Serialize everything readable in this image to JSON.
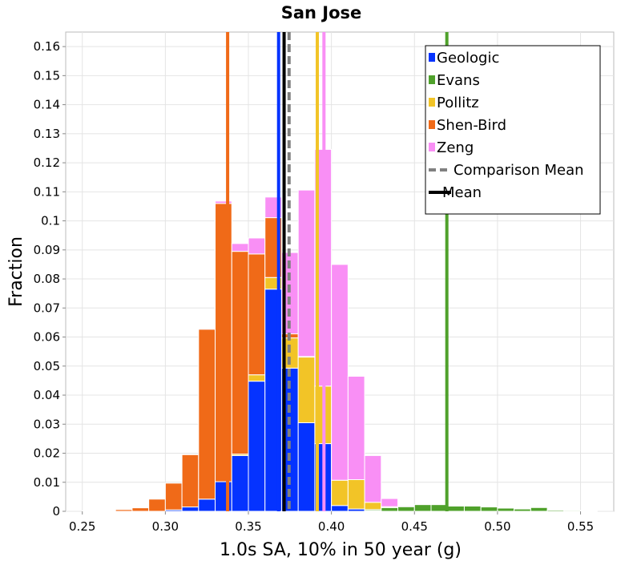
{
  "chart_data": {
    "type": "bar",
    "stacked": true,
    "title": "San Jose",
    "xlabel": "1.0s SA, 10% in 50 year (g)",
    "ylabel": "Fraction",
    "xlim": [
      0.24,
      0.57
    ],
    "ylim": [
      0,
      0.165
    ],
    "bin_width": 0.01,
    "grid": true,
    "legend_position": "top-right",
    "x_ticks": [
      0.25,
      0.3,
      0.35,
      0.4,
      0.45,
      0.5,
      0.55
    ],
    "x_tick_labels": [
      "0.25",
      "0.30",
      "0.35",
      "0.40",
      "0.45",
      "0.50",
      "0.55"
    ],
    "y_ticks": [
      0,
      0.01,
      0.02,
      0.03,
      0.04,
      0.05,
      0.06,
      0.07,
      0.08,
      0.09,
      0.1,
      0.11,
      0.12,
      0.13,
      0.14,
      0.15,
      0.16
    ],
    "y_tick_labels": [
      "0",
      "0.01",
      "0.02",
      "0.03",
      "0.04",
      "0.05",
      "0.06",
      "0.07",
      "0.08",
      "0.09",
      "0.1",
      "0.11",
      "0.12",
      "0.13",
      "0.14",
      "0.15",
      "0.16"
    ],
    "x": [
      0.255,
      0.265,
      0.275,
      0.285,
      0.295,
      0.305,
      0.315,
      0.325,
      0.335,
      0.345,
      0.355,
      0.365,
      0.375,
      0.385,
      0.395,
      0.405,
      0.415,
      0.425,
      0.435,
      0.445,
      0.455,
      0.465,
      0.475,
      0.485,
      0.495,
      0.505,
      0.515,
      0.525,
      0.535,
      0.545,
      0.555
    ],
    "series": [
      {
        "name": "Geologic",
        "color": "#0533ff",
        "values": [
          0,
          0,
          0,
          0,
          0,
          0.0005,
          0.0015,
          0.0042,
          0.0102,
          0.0192,
          0.0448,
          0.0765,
          0.0493,
          0.0305,
          0.0233,
          0.002,
          0.0008,
          0.0002,
          0,
          0,
          0,
          0,
          0,
          0,
          0,
          0,
          0,
          0,
          0,
          0,
          0
        ]
      },
      {
        "name": "Evans",
        "color": "#4fa12b",
        "values": [
          0,
          0,
          0,
          0,
          0,
          0,
          0,
          0,
          0,
          0,
          0,
          0,
          0,
          0,
          0,
          0,
          0,
          0.0004,
          0.0013,
          0.0016,
          0.0023,
          0.0023,
          0.0018,
          0.0018,
          0.0015,
          0.0011,
          0.0008,
          0.0013,
          0.0004,
          0.0003,
          0.0002
        ]
      },
      {
        "name": "Pollitz",
        "color": "#f2c427",
        "values": [
          0,
          0,
          0,
          0,
          0,
          0,
          0,
          0,
          0,
          0.0005,
          0.0022,
          0.004,
          0.0104,
          0.0226,
          0.0198,
          0.0087,
          0.0101,
          0.0025,
          0.0003,
          0,
          0,
          0,
          0,
          0,
          0,
          0,
          0,
          0,
          0,
          0,
          0
        ]
      },
      {
        "name": "Shen-Bird",
        "color": "#f06a18",
        "values": [
          0.0002,
          0.0002,
          0.0006,
          0.0012,
          0.0042,
          0.0092,
          0.018,
          0.0585,
          0.0958,
          0.0698,
          0.0416,
          0.0206,
          0.0014,
          0.0002,
          0,
          0,
          0,
          0,
          0,
          0,
          0,
          0,
          0,
          0,
          0,
          0,
          0,
          0,
          0,
          0,
          0
        ]
      },
      {
        "name": "Zeng",
        "color": "#f98ff5",
        "values": [
          0,
          0,
          0,
          0,
          0,
          0,
          0,
          0.0003,
          0.0008,
          0.0027,
          0.0055,
          0.0071,
          0.028,
          0.0573,
          0.0815,
          0.0743,
          0.0356,
          0.0161,
          0.0028,
          0.0003,
          0,
          0,
          0,
          0,
          0,
          0,
          0,
          0,
          0,
          0,
          0
        ]
      }
    ],
    "vertical_lines": [
      {
        "name": "Geologic mean",
        "x": 0.3682,
        "color": "#0533ff",
        "style": "solid"
      },
      {
        "name": "Shen-Bird mean",
        "x": 0.3375,
        "color": "#f06a18",
        "style": "solid"
      },
      {
        "name": "Pollitz mean",
        "x": 0.3915,
        "color": "#f2c427",
        "style": "solid"
      },
      {
        "name": "Zeng mean",
        "x": 0.3955,
        "color": "#f98ff5",
        "style": "solid"
      },
      {
        "name": "Evans mean",
        "x": 0.4695,
        "color": "#4fa12b",
        "style": "solid"
      },
      {
        "name": "Comparison Mean",
        "x": 0.3745,
        "color": "#808080",
        "style": "dashed"
      },
      {
        "name": "Mean",
        "x": 0.3715,
        "color": "#000000",
        "style": "solid"
      }
    ],
    "legend": [
      {
        "label": "Geologic",
        "color": "#0533ff",
        "kind": "box"
      },
      {
        "label": "Evans",
        "color": "#4fa12b",
        "kind": "box"
      },
      {
        "label": "Pollitz",
        "color": "#f2c427",
        "kind": "box"
      },
      {
        "label": "Shen-Bird",
        "color": "#f06a18",
        "kind": "box"
      },
      {
        "label": "Zeng",
        "color": "#f98ff5",
        "kind": "box"
      },
      {
        "label": "Comparison Mean",
        "color": "#808080",
        "kind": "dashed"
      },
      {
        "label": "Mean",
        "color": "#000000",
        "kind": "line"
      }
    ]
  }
}
